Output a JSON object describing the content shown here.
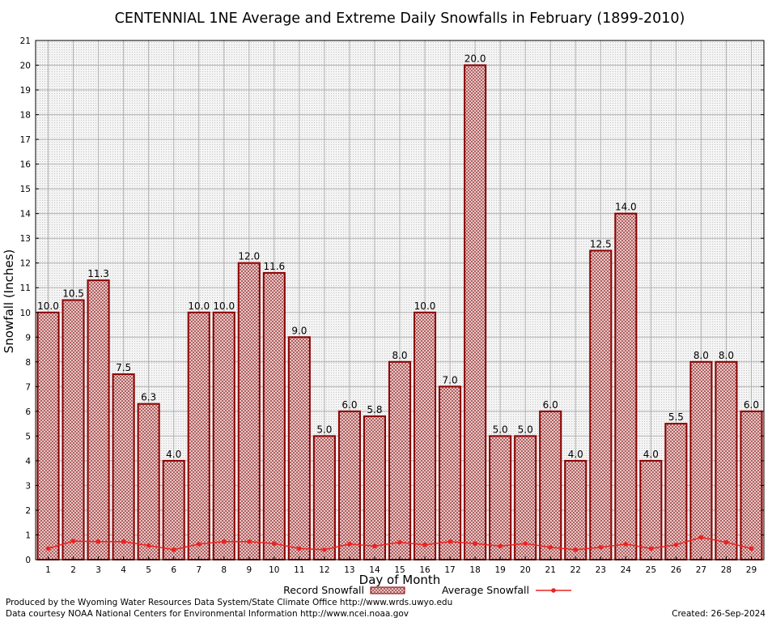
{
  "chart_data": {
    "type": "bar",
    "title": "CENTENNIAL 1NE Average and Extreme Daily Snowfalls in February (1899-2010)",
    "xlabel": "Day of Month",
    "ylabel": "Snowfall (Inches)",
    "ylim": [
      0,
      21
    ],
    "y_ticks": [
      "0",
      "1",
      "2",
      "3",
      "4",
      "5",
      "6",
      "7",
      "8",
      "9",
      "10",
      "11",
      "12",
      "13",
      "14",
      "15",
      "16",
      "17",
      "18",
      "19",
      "20",
      "21"
    ],
    "categories": [
      "1",
      "2",
      "3",
      "4",
      "5",
      "6",
      "7",
      "8",
      "9",
      "10",
      "11",
      "12",
      "13",
      "14",
      "15",
      "16",
      "17",
      "18",
      "19",
      "20",
      "21",
      "22",
      "23",
      "24",
      "25",
      "26",
      "27",
      "28",
      "29"
    ],
    "series": [
      {
        "name": "Record Snowfall",
        "kind": "bar",
        "values": [
          10.0,
          10.5,
          11.3,
          7.5,
          6.3,
          4.0,
          10.0,
          10.0,
          12.0,
          11.6,
          9.0,
          5.0,
          6.0,
          5.8,
          8.0,
          10.0,
          7.0,
          20.0,
          5.0,
          5.0,
          6.0,
          4.0,
          12.5,
          14.0,
          4.0,
          5.5,
          8.0,
          8.0,
          6.0
        ],
        "labels": [
          "10.0",
          "10.5",
          "11.3",
          "7.5",
          "6.3",
          "4.0",
          "10.0",
          "10.0",
          "12.0",
          "11.6",
          "9.0",
          "5.0",
          "6.0",
          "5.8",
          "8.0",
          "10.0",
          "7.0",
          "20.0",
          "5.0",
          "5.0",
          "6.0",
          "4.0",
          "12.5",
          "14.0",
          "4.0",
          "5.5",
          "8.0",
          "8.0",
          "6.0"
        ]
      },
      {
        "name": "Average Snowfall",
        "kind": "line",
        "values": [
          0.45,
          0.75,
          0.73,
          0.73,
          0.57,
          0.4,
          0.63,
          0.73,
          0.73,
          0.65,
          0.45,
          0.4,
          0.63,
          0.55,
          0.7,
          0.6,
          0.73,
          0.65,
          0.55,
          0.65,
          0.5,
          0.4,
          0.5,
          0.63,
          0.45,
          0.6,
          0.9,
          0.7,
          0.45
        ]
      }
    ],
    "colors": {
      "bar_fill": "#d8a8a8",
      "bar_stroke": "#8b0000",
      "line": "#ee2222",
      "grid": "#b0b0b0",
      "plot_bg": "#f2f2f2"
    },
    "legend_position": "bottom"
  },
  "footer": {
    "produced_by": "Produced by the Wyoming Water Resources Data System/State Climate Office http://www.wrds.uwyo.edu",
    "courtesy": "Data courtesy NOAA National Centers for Environmental Information http://www.ncei.noaa.gov",
    "created": "Created: 26-Sep-2024"
  }
}
